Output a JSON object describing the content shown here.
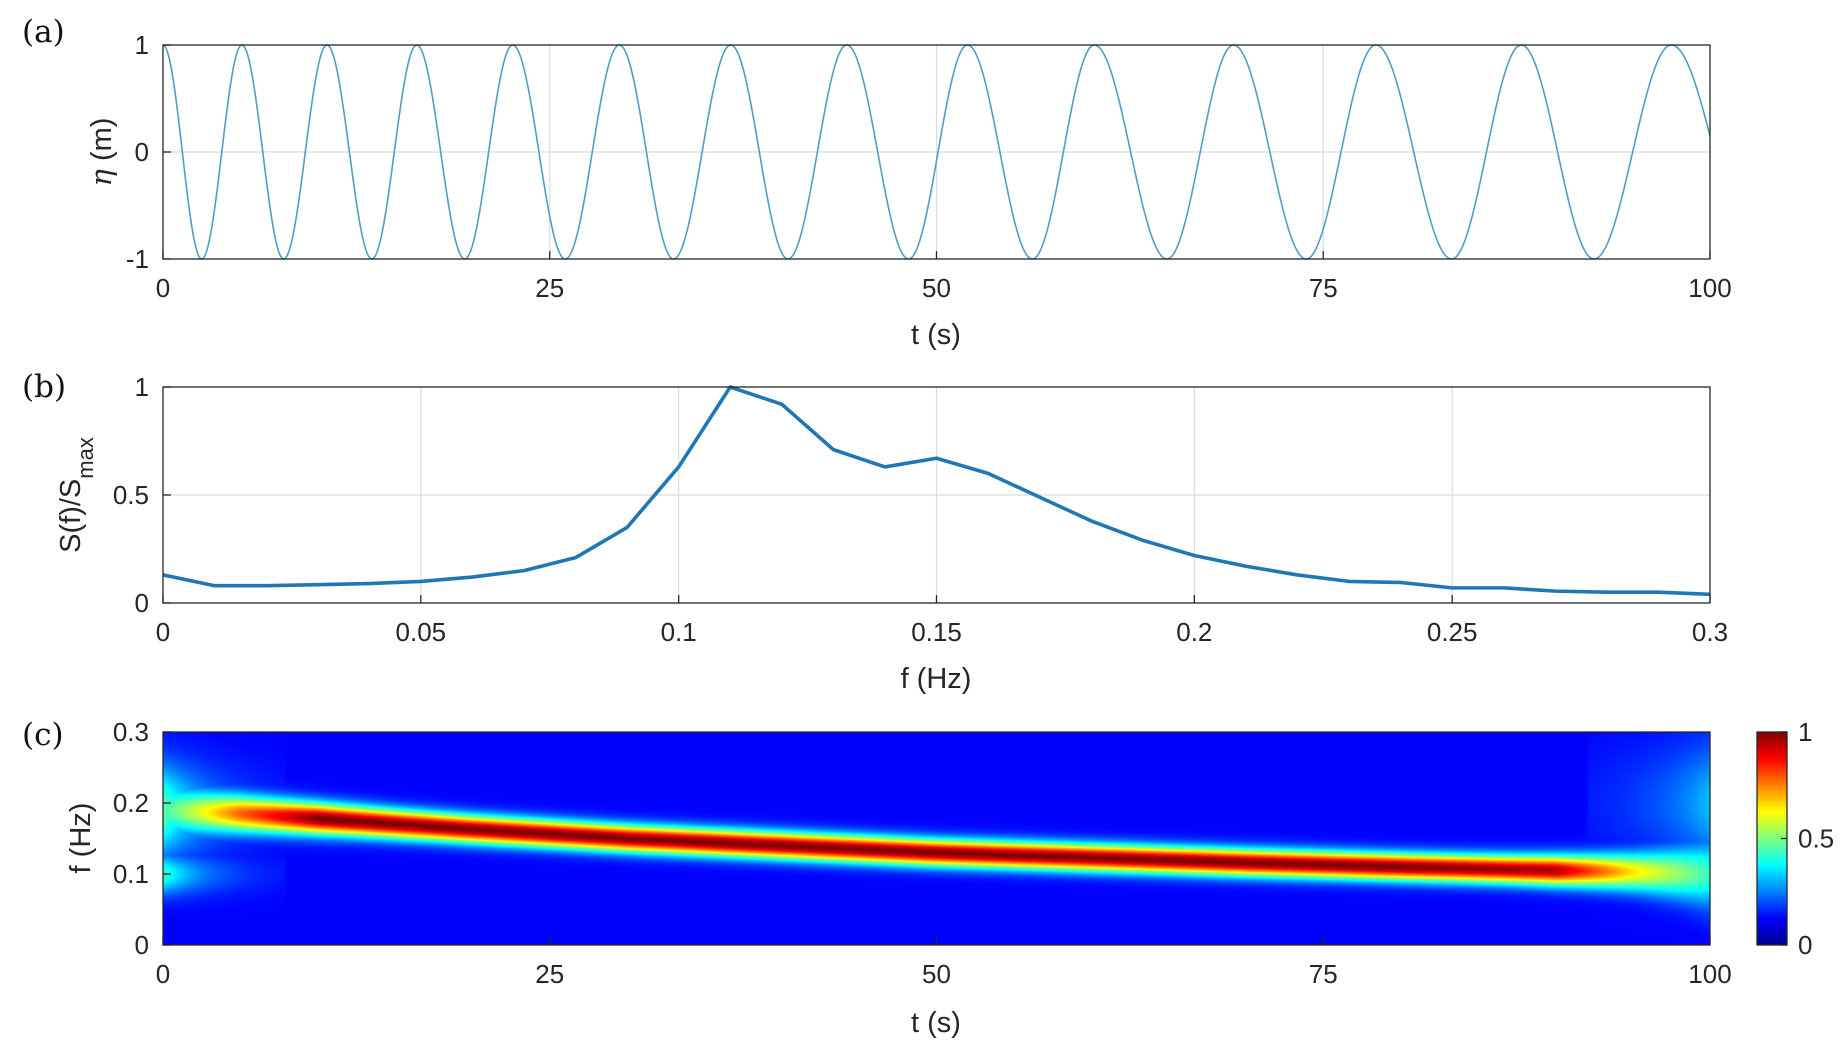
{
  "panel_labels": [
    "(a)",
    "(b)",
    "(c)"
  ],
  "chart_data": [
    {
      "type": "line",
      "panel": "(a)",
      "xlabel": "t (s)",
      "ylabel_symbol": "η",
      "ylabel_unit": " (m)",
      "xlim": [
        0,
        100
      ],
      "ylim": [
        -1,
        1
      ],
      "xticks": [
        0,
        25,
        50,
        75,
        100
      ],
      "xtick_labels": [
        "0",
        "25",
        "50",
        "75",
        "100"
      ],
      "yticks": [
        -1,
        0,
        1
      ],
      "ytick_labels": [
        "-1",
        "0",
        "1"
      ],
      "grid": true,
      "color": "#4f9ec7",
      "signal": "cos(phase(t))",
      "crests_t": [
        0,
        5.1,
        10.6,
        16.4,
        22.6,
        29.5,
        36.7,
        44.2,
        52.0,
        60.2,
        69.2,
        78.4,
        87.8,
        97.5
      ],
      "troughs_t": [
        2.5,
        7.8,
        13.5,
        19.5,
        26.0,
        33.0,
        40.4,
        48.2,
        56.2,
        64.9,
        73.9,
        83.3,
        92.5
      ],
      "end": {
        "t": 100,
        "eta": 0.15
      }
    },
    {
      "type": "line",
      "panel": "(b)",
      "xlabel": "f (Hz)",
      "ylabel_main": "S(f)/S",
      "ylabel_sub": "max",
      "xlim": [
        0,
        0.3
      ],
      "ylim": [
        0,
        1
      ],
      "xticks": [
        0,
        0.05,
        0.1,
        0.15,
        0.2,
        0.25,
        0.3
      ],
      "xtick_labels": [
        "0",
        "0.05",
        "0.1",
        "0.15",
        "0.2",
        "0.25",
        "0.3"
      ],
      "yticks": [
        0,
        0.5,
        1
      ],
      "ytick_labels": [
        "0",
        "0.5",
        "1"
      ],
      "grid": true,
      "color": "#1f77b4",
      "x": [
        0,
        0.01,
        0.02,
        0.03,
        0.04,
        0.05,
        0.06,
        0.07,
        0.08,
        0.09,
        0.1,
        0.11,
        0.12,
        0.13,
        0.14,
        0.15,
        0.16,
        0.17,
        0.18,
        0.19,
        0.2,
        0.21,
        0.22,
        0.23,
        0.24,
        0.25,
        0.26,
        0.27,
        0.28,
        0.29,
        0.3
      ],
      "y": [
        0.13,
        0.08,
        0.08,
        0.085,
        0.09,
        0.1,
        0.12,
        0.15,
        0.21,
        0.35,
        0.63,
        1.0,
        0.92,
        0.71,
        0.63,
        0.67,
        0.6,
        0.49,
        0.38,
        0.29,
        0.22,
        0.17,
        0.13,
        0.1,
        0.095,
        0.07,
        0.07,
        0.055,
        0.05,
        0.05,
        0.04
      ]
    },
    {
      "type": "heatmap",
      "panel": "(c)",
      "xlabel": "t (s)",
      "ylabel": "f (Hz)",
      "xlim": [
        0,
        100
      ],
      "ylim": [
        0,
        0.3
      ],
      "xticks": [
        0,
        25,
        50,
        75,
        100
      ],
      "xtick_labels": [
        "0",
        "25",
        "50",
        "75",
        "100"
      ],
      "yticks": [
        0,
        0.1,
        0.2,
        0.3
      ],
      "ytick_labels": [
        "0",
        "0.1",
        "0.2",
        "0.3"
      ],
      "colormap": "jet",
      "colorbar": {
        "range": [
          0,
          1
        ],
        "ticks": [
          0,
          0.5,
          1
        ],
        "tick_labels": [
          "0",
          "0.5",
          "1"
        ]
      },
      "ridge": {
        "t": [
          0,
          5,
          10,
          20,
          30,
          40,
          50,
          60,
          70,
          80,
          90,
          95,
          100
        ],
        "f": [
          0.19,
          0.185,
          0.178,
          0.163,
          0.15,
          0.14,
          0.13,
          0.123,
          0.116,
          0.11,
          0.105,
          0.103,
          0.1
        ],
        "peak": [
          0.35,
          0.75,
          1.0,
          1.0,
          1.0,
          1.0,
          1.0,
          1.0,
          1.0,
          1.0,
          0.95,
          0.6,
          0.35
        ]
      }
    }
  ]
}
